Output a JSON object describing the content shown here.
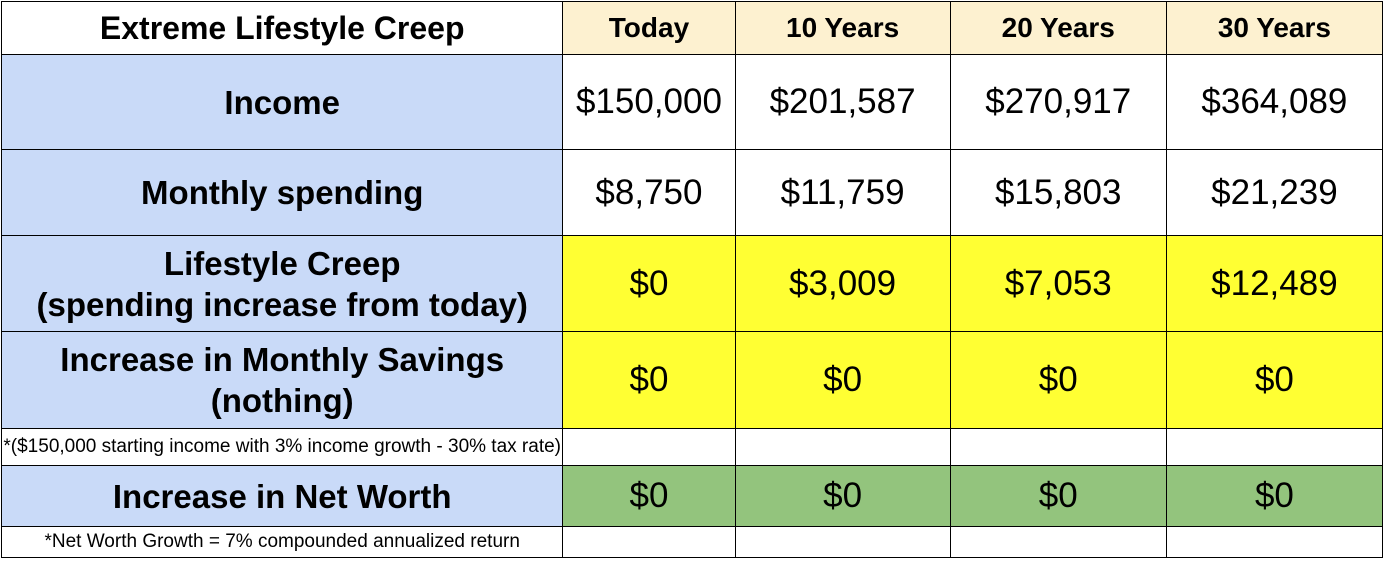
{
  "table": {
    "title": "Extreme Lifestyle Creep",
    "columns": [
      "Today",
      "10 Years",
      "20 Years",
      "30 Years"
    ],
    "rows": [
      {
        "label_lines": [
          "Income"
        ],
        "values": [
          "$150,000",
          "$201,587",
          "$270,917",
          "$364,089"
        ],
        "fill": "#ffffff"
      },
      {
        "label_lines": [
          "Monthly spending"
        ],
        "values": [
          "$8,750",
          "$11,759",
          "$15,803",
          "$21,239"
        ],
        "fill": "#ffffff"
      },
      {
        "label_lines": [
          "Lifestyle Creep",
          "(spending increase from today)"
        ],
        "values": [
          "$0",
          "$3,009",
          "$7,053",
          "$12,489"
        ],
        "fill": "#ffff33"
      },
      {
        "label_lines": [
          "Increase in Monthly Savings",
          "(nothing)"
        ],
        "values": [
          "$0",
          "$0",
          "$0",
          "$0"
        ],
        "fill": "#ffff33"
      }
    ],
    "note_income": "*($150,000 starting income with 3% income growth - 30% tax rate)",
    "net_worth_row": {
      "label": "Increase in Net Worth",
      "values": [
        "$0",
        "$0",
        "$0",
        "$0"
      ],
      "fill": "#93c47d"
    },
    "note_networth": "*Net Worth Growth = 7% compounded annualized return"
  },
  "colors": {
    "label_bg": "#c9daf8",
    "header_bg": "#fdf1d0",
    "highlight_yellow": "#ffff33",
    "highlight_green": "#93c47d"
  }
}
